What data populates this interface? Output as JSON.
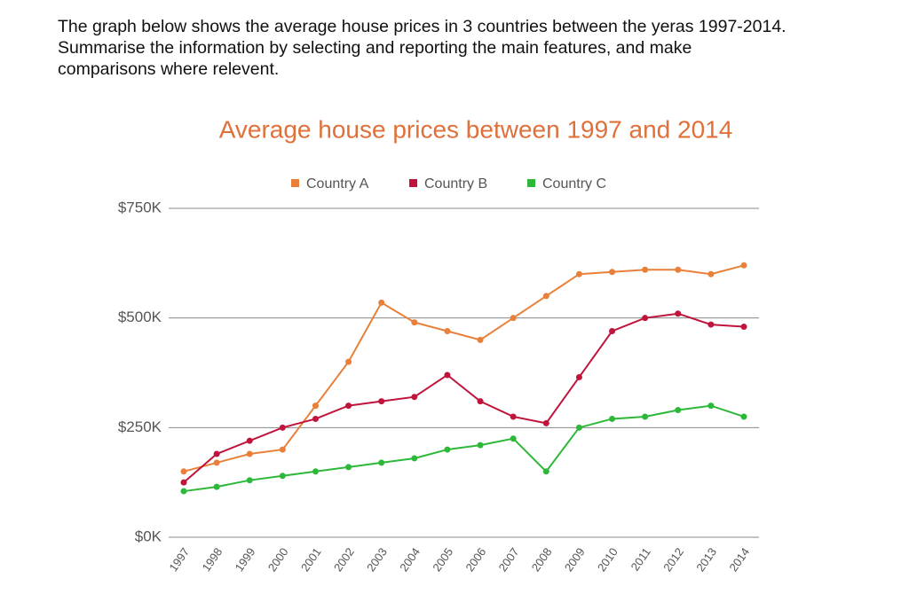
{
  "prompt": [
    "The graph below shows the average house prices in 3 countries between the yeras 1997-2014.",
    "Summarise the information by selecting and reporting the main features, and make",
    "comparisons where relevent."
  ],
  "chart_data": {
    "type": "line",
    "title": "Average house prices between 1997 and 2014",
    "categories": [
      "1997",
      "1998",
      "1999",
      "2000",
      "2001",
      "2002",
      "2003",
      "2004",
      "2005",
      "2006",
      "2007",
      "2008",
      "2009",
      "2010",
      "2011",
      "2012",
      "2013",
      "2014"
    ],
    "series": [
      {
        "name": "Country A",
        "color": "#e8803a",
        "values": [
          150,
          170,
          190,
          200,
          300,
          400,
          535,
          490,
          470,
          450,
          500,
          550,
          600,
          605,
          610,
          610,
          600,
          620
        ]
      },
      {
        "name": "Country B",
        "color": "#c0143c",
        "values": [
          125,
          190,
          220,
          250,
          270,
          300,
          310,
          320,
          370,
          310,
          275,
          260,
          365,
          470,
          500,
          510,
          485,
          480
        ]
      },
      {
        "name": "Country C",
        "color": "#2db83a",
        "values": [
          105,
          115,
          130,
          140,
          150,
          160,
          170,
          180,
          200,
          210,
          225,
          150,
          250,
          270,
          275,
          290,
          300,
          275
        ]
      }
    ],
    "ylim": [
      0,
      750
    ],
    "yticks": [
      {
        "value": 0,
        "label": "$0K"
      },
      {
        "value": 250,
        "label": "$250K"
      },
      {
        "value": 500,
        "label": "$500K"
      },
      {
        "value": 750,
        "label": "$750K"
      }
    ],
    "grid": true,
    "legend": "top"
  }
}
